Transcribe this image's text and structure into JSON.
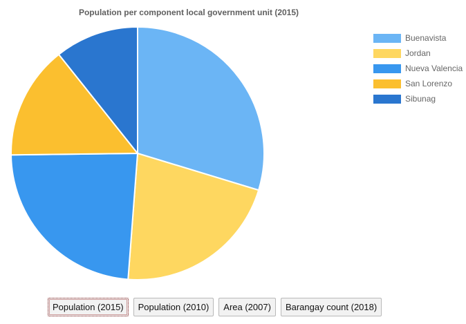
{
  "chart_data": {
    "type": "pie",
    "title": "Population per component local government unit (2015)",
    "categories": [
      "Buenavista",
      "Jordan",
      "Nueva Valencia",
      "San Lorenzo",
      "Sibunag"
    ],
    "values": [
      29.7,
      21.5,
      23.6,
      14.5,
      10.7
    ],
    "colors": [
      "#6bb5f5",
      "#fed760",
      "#3897ef",
      "#fbbf2f",
      "#2a76cf"
    ],
    "legend_position": "right",
    "start_angle_deg": 0,
    "direction": "clockwise"
  },
  "dataset_buttons": [
    {
      "label": "Population (2015)",
      "active": true
    },
    {
      "label": "Population (2010)",
      "active": false
    },
    {
      "label": "Area (2007)",
      "active": false
    },
    {
      "label": "Barangay count (2018)",
      "active": false
    }
  ]
}
